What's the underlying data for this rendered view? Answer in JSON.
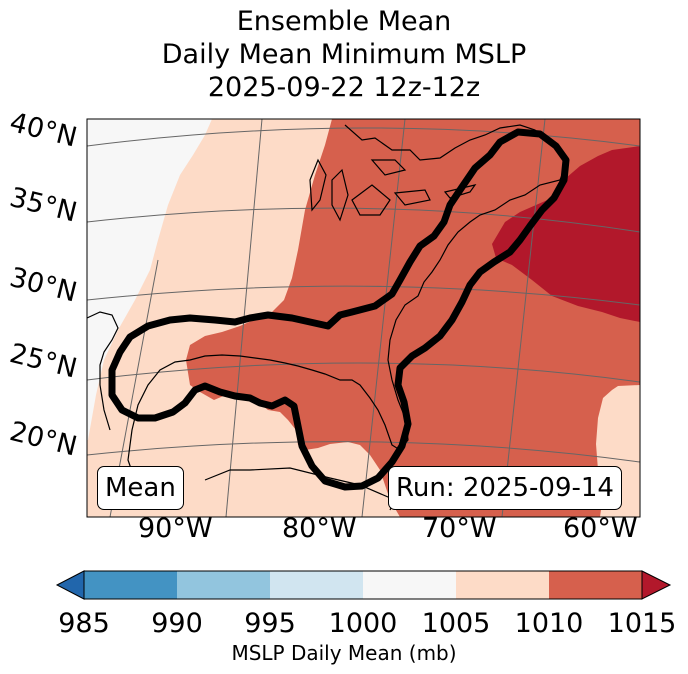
{
  "title": {
    "line1": "Ensemble Mean",
    "line2": "Daily Mean Minimum MSLP",
    "line3": "2025-09-22 12z-12z"
  },
  "map": {
    "lat_labels": [
      "40°N",
      "35°N",
      "30°N",
      "25°N",
      "20°N"
    ],
    "lon_labels": [
      "90°W",
      "80°W",
      "70°W",
      "60°W"
    ],
    "mean_label": "Mean",
    "run_label": "Run: 2025-09-14",
    "colors": {
      "c1000_1005": "#f7f7f7",
      "c1005_1010": "#fddbc7",
      "c1010_1015": "#d6604d",
      "c_over_1015": "#b2182b",
      "coast": "#000000",
      "contour": "#000000",
      "grid": "#666666"
    }
  },
  "colorbar": {
    "label": "MSLP Daily Mean (mb)",
    "ticks": [
      "985",
      "990",
      "995",
      "1000",
      "1005",
      "1010",
      "1015"
    ],
    "colors": [
      "#2166ac",
      "#4393c3",
      "#92c5de",
      "#d1e5f0",
      "#f7f7f7",
      "#fddbc7",
      "#d6604d",
      "#b2182b"
    ]
  }
}
